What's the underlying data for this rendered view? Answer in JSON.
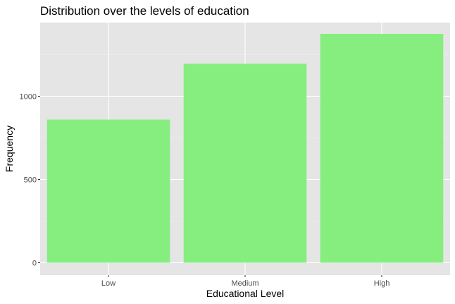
{
  "chart_data": {
    "type": "bar",
    "title": "Distribution over the levels of education",
    "xlabel": "Educational Level",
    "ylabel": "Frequency",
    "categories": [
      "Low",
      "Medium",
      "High"
    ],
    "values": [
      860,
      1195,
      1375
    ],
    "ylim": [
      0,
      1420
    ],
    "yticks": [
      0,
      500,
      1000
    ],
    "ytick_labels": [
      "0",
      "500",
      "1000"
    ],
    "grid": true,
    "legend": "none",
    "colors": {
      "bar": "#86ee7f",
      "panel": "#e5e5e5",
      "grid_major": "#ffffff",
      "grid_minor": "#f2f2f2"
    }
  }
}
